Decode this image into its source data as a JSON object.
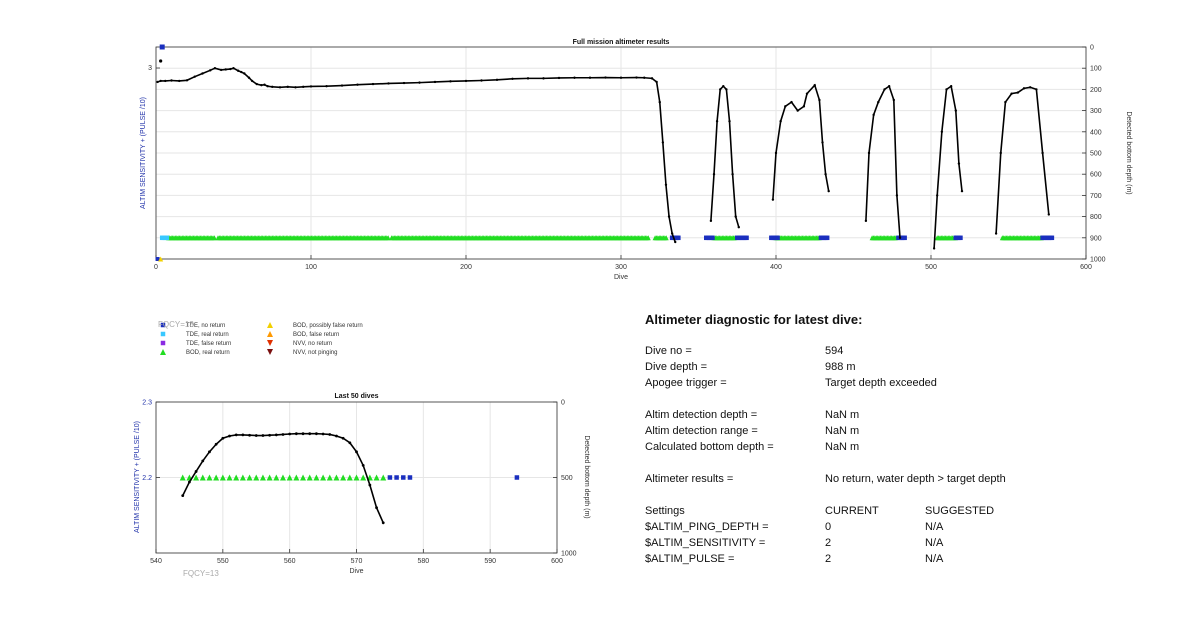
{
  "chart_data": [
    {
      "type": "line",
      "title": "Full mission altimeter results",
      "xlabel": "Dive",
      "ylabel": "ALTIM SENSITIVITY + (PULSE /10)",
      "ylabel_right": "Detected bottom depth (m)",
      "xlim": [
        0,
        600
      ],
      "ylim_right": [
        1000,
        0
      ],
      "x_ticks": [
        "0",
        "100",
        "200",
        "300",
        "400",
        "500",
        "600"
      ],
      "y_ticks_left": [
        "3"
      ],
      "y_ticks_right": [
        "0",
        "100",
        "200",
        "300",
        "400",
        "500",
        "600",
        "700",
        "800",
        "900",
        "1000"
      ],
      "grid": true,
      "series": [
        {
          "name": "Detected bottom depth",
          "color": "#000000",
          "segments": [
            {
              "x": [
                1,
                3,
                6,
                10,
                15,
                20,
                25,
                30,
                35,
                38,
                42,
                45,
                48,
                50,
                53,
                55,
                57,
                60,
                62,
                65,
                68,
                70,
                72,
                75,
                80,
                85,
                90,
                95,
                100,
                110,
                120,
                130,
                140,
                150,
                160,
                170,
                180,
                190,
                200,
                210,
                220,
                230,
                240,
                250,
                260,
                270,
                280,
                290,
                300,
                310,
                315,
                320,
                323,
                325,
                327,
                329,
                331,
                333,
                335
              ],
              "y": [
                165,
                160,
                160,
                158,
                160,
                157,
                140,
                125,
                110,
                100,
                108,
                106,
                104,
                100,
                112,
                118,
                125,
                145,
                160,
                175,
                180,
                178,
                185,
                188,
                190,
                188,
                190,
                188,
                186,
                185,
                182,
                178,
                175,
                172,
                170,
                168,
                165,
                162,
                160,
                158,
                155,
                150,
                148,
                148,
                146,
                145,
                145,
                144,
                145,
                144,
                145,
                148,
                165,
                260,
                450,
                650,
                800,
                880,
                920
              ]
            },
            {
              "x": [
                358,
                360,
                362,
                364,
                366,
                368,
                370,
                372,
                374,
                376
              ],
              "y": [
                820,
                600,
                350,
                200,
                185,
                200,
                350,
                600,
                800,
                850
              ]
            },
            {
              "x": [
                398,
                400,
                403,
                406,
                410,
                414,
                418,
                420,
                425,
                428,
                430,
                432,
                434
              ],
              "y": [
                720,
                500,
                350,
                280,
                260,
                300,
                280,
                220,
                180,
                250,
                450,
                600,
                680
              ]
            },
            {
              "x": [
                458,
                460,
                463,
                466,
                470,
                473,
                476,
                478,
                480
              ],
              "y": [
                820,
                500,
                320,
                260,
                200,
                185,
                250,
                700,
                900
              ]
            },
            {
              "x": [
                502,
                504,
                507,
                510,
                513,
                516,
                518,
                520
              ],
              "y": [
                950,
                700,
                400,
                200,
                185,
                300,
                550,
                680
              ]
            },
            {
              "x": [
                542,
                545,
                548,
                552,
                556,
                560,
                564,
                568,
                572,
                576
              ],
              "y": [
                880,
                500,
                260,
                220,
                215,
                195,
                190,
                200,
                500,
                790
              ]
            }
          ]
        }
      ],
      "markers": {
        "BOD, real return": {
          "color": "#22dd22",
          "ranges": [
            [
              8,
              38
            ],
            [
              40,
              150
            ],
            [
              152,
              318
            ],
            [
              322,
              330
            ],
            [
              360,
              374
            ],
            [
              400,
              428
            ],
            [
              462,
              478
            ],
            [
              504,
              516
            ],
            [
              546,
              572
            ]
          ]
        },
        "TDE, no return": {
          "color": "#1a2fbf",
          "ranges": [
            [
              333,
              337
            ],
            [
              355,
              359
            ],
            [
              375,
              381
            ],
            [
              397,
              401
            ],
            [
              429,
              433
            ],
            [
              479,
              483
            ],
            [
              516,
              519
            ],
            [
              572,
              578
            ]
          ]
        },
        "TDE, real return": {
          "color": "#38c8ff",
          "ranges": [
            [
              4,
              7
            ]
          ]
        }
      },
      "annotations": [
        "FQCY=13"
      ]
    },
    {
      "type": "line",
      "title": "Last 50 dives",
      "xlabel": "Dive",
      "ylabel": "ALTIM SENSITIVITY + (PULSE /10)",
      "ylabel_right": "Detected bottom depth (m)",
      "xlim": [
        540,
        600
      ],
      "ylim_left": [
        2.1,
        2.3
      ],
      "ylim_right": [
        1000,
        0
      ],
      "x_ticks": [
        "540",
        "550",
        "560",
        "570",
        "580",
        "590",
        "600"
      ],
      "y_ticks_left": [
        "2.3",
        "2.2"
      ],
      "y_ticks_right": [
        "0",
        "500",
        "1000"
      ],
      "grid": true,
      "series": [
        {
          "name": "Detected bottom depth",
          "color": "#000000",
          "x": [
            544,
            545,
            546,
            547,
            548,
            549,
            550,
            551,
            552,
            553,
            554,
            555,
            556,
            557,
            558,
            559,
            560,
            561,
            562,
            563,
            564,
            565,
            566,
            567,
            568,
            569,
            570,
            571,
            572,
            573,
            574
          ],
          "y": [
            620,
            530,
            460,
            390,
            330,
            280,
            240,
            225,
            218,
            218,
            220,
            222,
            222,
            220,
            218,
            215,
            212,
            210,
            210,
            210,
            210,
            212,
            215,
            225,
            240,
            270,
            330,
            420,
            550,
            700,
            800
          ]
        }
      ],
      "markers": {
        "BOD, real return": {
          "color": "#22dd22",
          "x": [
            544,
            545,
            546,
            547,
            548,
            549,
            550,
            551,
            552,
            553,
            554,
            555,
            556,
            557,
            558,
            559,
            560,
            561,
            562,
            563,
            564,
            565,
            566,
            567,
            568,
            569,
            570,
            571,
            572,
            573,
            574
          ],
          "value": 2.2
        },
        "TDE, no return": {
          "color": "#1a2fbf",
          "x": [
            575,
            576,
            577,
            578,
            594
          ],
          "value": 2.2
        }
      },
      "annotations": [
        "FQCY=13"
      ]
    }
  ],
  "legend": {
    "items": [
      {
        "label": "TDE, no return",
        "symbol": "square",
        "color": "#1a2fbf"
      },
      {
        "label": "TDE, real return",
        "symbol": "square",
        "color": "#38c8ff"
      },
      {
        "label": "TDE, false return",
        "symbol": "square",
        "color": "#8a2be2"
      },
      {
        "label": "BOD, real return",
        "symbol": "triangle-up",
        "color": "#22dd22"
      },
      {
        "label": "BOD, possibly false return",
        "symbol": "triangle-up",
        "color": "#f2d000"
      },
      {
        "label": "BOD, false return",
        "symbol": "triangle-up",
        "color": "#ff9900"
      },
      {
        "label": "NVV, no return",
        "symbol": "triangle-down",
        "color": "#e03000"
      },
      {
        "label": "NVV, not pinging",
        "symbol": "triangle-down",
        "color": "#7a1010"
      }
    ]
  },
  "diagnostic": {
    "title": "Altimeter diagnostic for latest dive:",
    "dive_no_label": "Dive no =",
    "dive_no": "594",
    "dive_depth_label": "Dive depth =",
    "dive_depth": "988 m",
    "apogee_label": "Apogee trigger =",
    "apogee": "Target depth exceeded",
    "altim_depth_label": "Altim detection depth =",
    "altim_depth": "NaN m",
    "altim_range_label": "Altim detection range =",
    "altim_range": "NaN m",
    "calc_bottom_label": "Calculated bottom depth =",
    "calc_bottom": "NaN m",
    "results_label": "Altimeter results =",
    "results": "No return, water depth > target depth",
    "settings_label": "Settings",
    "current_label": "CURRENT",
    "suggested_label": "SUGGESTED",
    "settings": [
      {
        "name": "$ALTIM_PING_DEPTH =",
        "current": "0",
        "suggested": "N/A"
      },
      {
        "name": "$ALTIM_SENSITIVITY =",
        "current": "2",
        "suggested": "N/A"
      },
      {
        "name": "$ALTIM_PULSE =",
        "current": "2",
        "suggested": "N/A"
      }
    ]
  }
}
